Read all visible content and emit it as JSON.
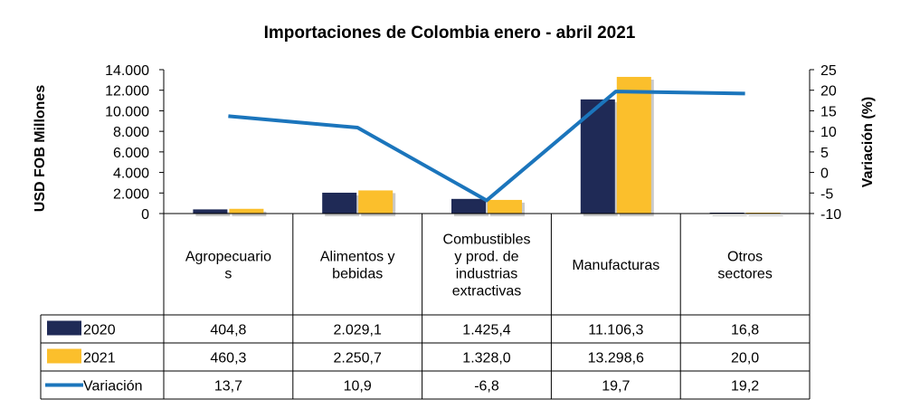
{
  "chart_data": {
    "type": "bar",
    "title": "Importaciones de Colombia enero - abril 2021",
    "ylabel": "USD FOB Millones",
    "y2label": "Variación (%)",
    "ylim": [
      0,
      14000
    ],
    "y2lim": [
      -10,
      25
    ],
    "yticks": [
      "14.000",
      "12.000",
      "10.000",
      "8.000",
      "6.000",
      "4.000",
      "2.000",
      "0"
    ],
    "y2ticks": [
      "25",
      "20",
      "15",
      "10",
      "5",
      "0",
      "-5",
      "-10"
    ],
    "categories": [
      [
        "Agropecuario",
        "s"
      ],
      [
        "Alimentos y",
        "bebidas"
      ],
      [
        "Combustibles",
        "y prod. de",
        "industrias",
        "extractivas"
      ],
      [
        "Manufacturas"
      ],
      [
        "Otros",
        "sectores"
      ]
    ],
    "series": [
      {
        "name": "2020",
        "kind": "bar",
        "color": "#1f2a56",
        "values": [
          404.8,
          2029.1,
          1425.4,
          11106.3,
          16.8
        ],
        "labels": [
          "404,8",
          "2.029,1",
          "1.425,4",
          "11.106,3",
          "16,8"
        ]
      },
      {
        "name": "2021",
        "kind": "bar",
        "color": "#fbbf2c",
        "values": [
          460.3,
          2250.7,
          1328.0,
          13298.6,
          20.0
        ],
        "labels": [
          "460,3",
          "2.250,7",
          "1.328,0",
          "13.298,6",
          "20,0"
        ]
      },
      {
        "name": "Variación",
        "kind": "line",
        "axis": "y2",
        "color": "#1b75bc",
        "values": [
          13.7,
          10.9,
          -6.8,
          19.7,
          19.2
        ],
        "labels": [
          "13,7",
          "10,9",
          "-6,8",
          "19,7",
          "19,2"
        ]
      }
    ],
    "grid": false,
    "legend": "table-left"
  }
}
